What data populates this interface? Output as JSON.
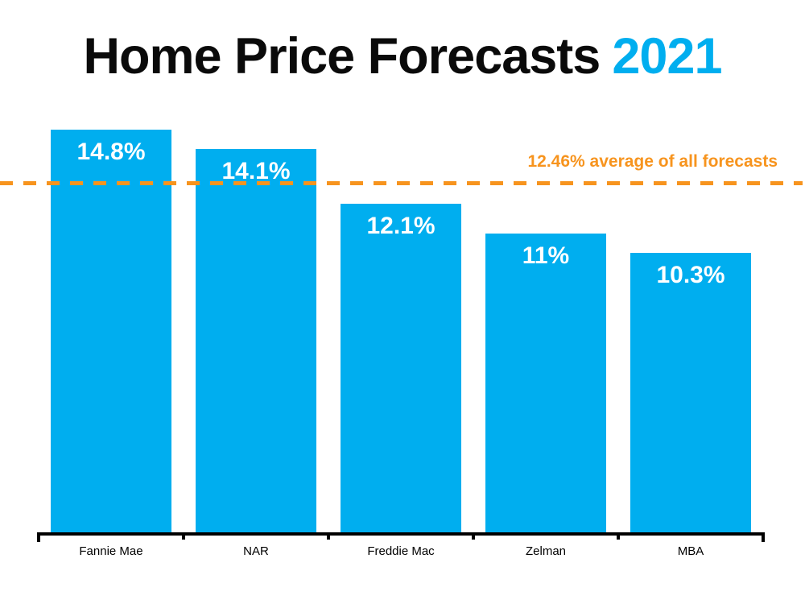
{
  "title": {
    "text_black": "Home Price Forecasts",
    "text_blue": "2021"
  },
  "annotation": {
    "text": "12.46% average of all forecasts"
  },
  "colors": {
    "bar_blue": "#00AEEF",
    "title_year_blue": "#00AEEF",
    "average_orange": "#F7941E",
    "axis_black": "#000000",
    "bar_label_white": "#FFFFFF"
  },
  "chart_data": {
    "type": "bar",
    "title": "Home Price Forecasts 2021",
    "categories": [
      "Fannie Mae",
      "NAR",
      "Freddie Mac",
      "Zelman",
      "MBA"
    ],
    "values": [
      14.8,
      14.1,
      12.1,
      11,
      10.3
    ],
    "bar_labels": [
      "14.8%",
      "14.1%",
      "12.1%",
      "11%",
      "10.3%"
    ],
    "average": 12.46,
    "average_label": "12.46% average of all forecasts",
    "xlabel": "",
    "ylabel": "",
    "ylim": [
      0,
      15
    ],
    "grid": false,
    "legend": false,
    "bar_color": "#00AEEF",
    "average_line_color": "#F7941E",
    "average_line_style": "dashed"
  }
}
